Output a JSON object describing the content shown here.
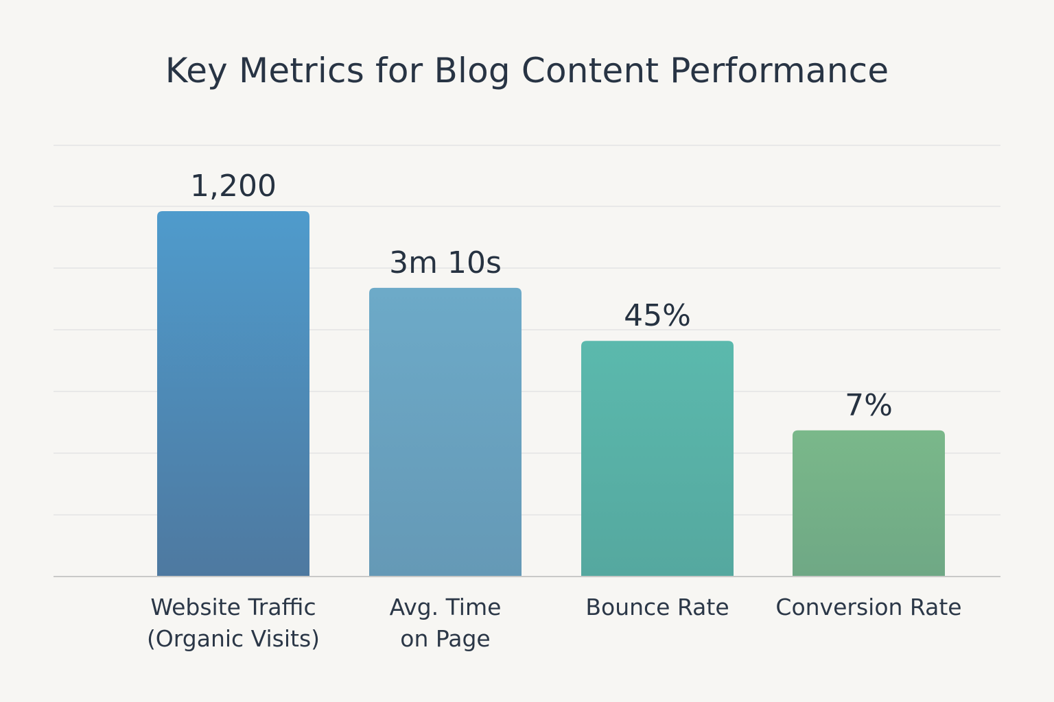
{
  "chart_data": {
    "type": "bar",
    "title": "Key Metrics for Blog Content Performance",
    "xlabel": "",
    "ylabel": "",
    "grid": true,
    "legend": "none",
    "categories": [
      "Website Traffic\n(Organic Visits)",
      "Avg. Time\non Page",
      "Bounce Rate",
      "Conversion Rate"
    ],
    "data_labels": [
      "1,200",
      "3m 10s",
      "45%",
      "7%"
    ],
    "relative_heights": [
      1.0,
      0.79,
      0.645,
      0.4
    ],
    "colors": [
      {
        "top": "#4f9bcc",
        "bottom": "#4e79a0"
      },
      {
        "top": "#6daac8",
        "bottom": "#6599b6"
      },
      {
        "top": "#5bb9ad",
        "bottom": "#55a89f"
      },
      {
        "top": "#7ab88a",
        "bottom": "#6fa885"
      }
    ]
  }
}
